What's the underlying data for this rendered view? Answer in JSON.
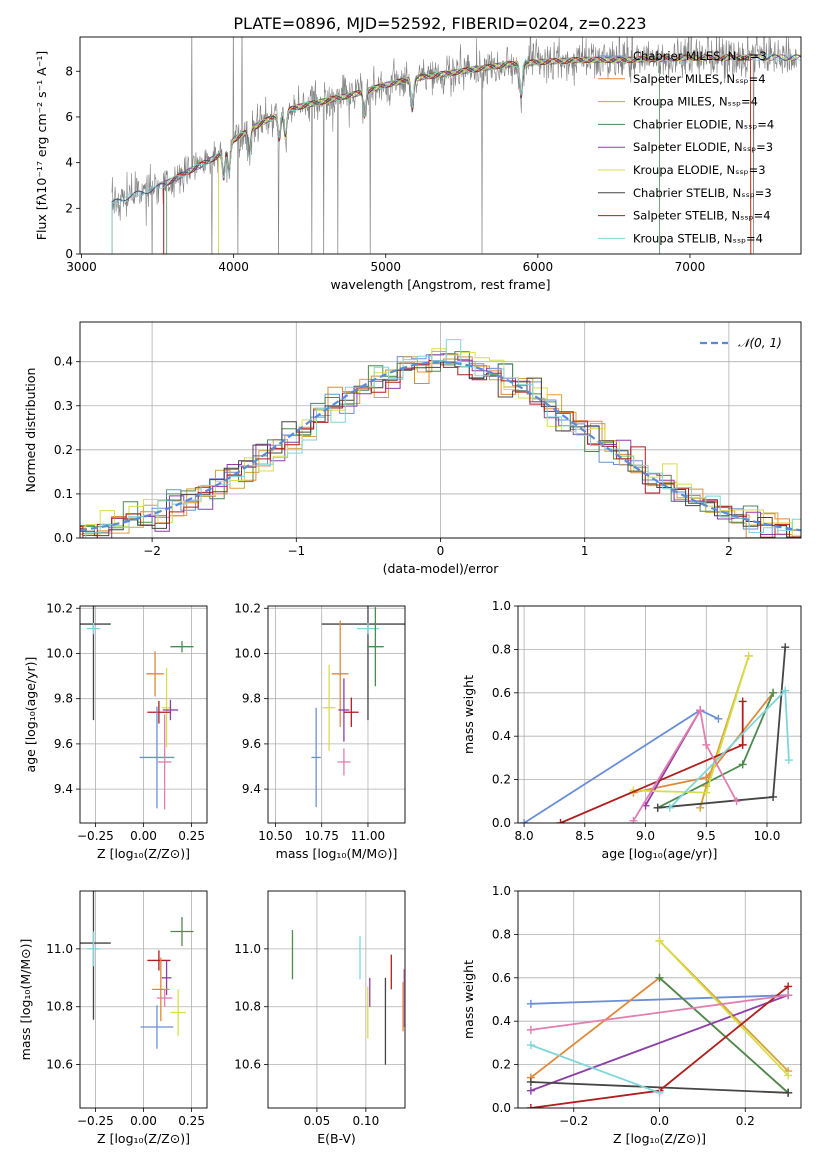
{
  "figure_title": "PLATE=0896, MJD=52592, FIBERID=0204, z=0.223",
  "colors": {
    "chabrier_miles": "#6a8fd6",
    "salpeter_miles": "#e0893a",
    "kroupa_miles": "#d6a23a",
    "chabrier_elodie": "#4c8a4f",
    "salpeter_elodie": "#8e3fa6",
    "kroupa_elodie": "#d8de4a",
    "chabrier_stelib": "#454545",
    "salpeter_stelib": "#b01e1e",
    "kroupa_stelib": "#7fd6d8",
    "pink": "#e07fb0",
    "gauss": "#5b8bd6",
    "data": "#808080"
  },
  "chart_data": [
    {
      "id": "spectrum",
      "type": "line",
      "xlabel": "wavelength [Angstrom, rest frame]",
      "ylabel": "Flux [fλ10⁻¹⁷ erg cm⁻² s⁻¹ A⁻¹]",
      "xlim": [
        2990,
        7730
      ],
      "ylim": [
        0,
        9.5
      ],
      "xticks": [
        3000,
        4000,
        5000,
        6000,
        7000
      ],
      "yticks": [
        0,
        2,
        4,
        6,
        8
      ],
      "continuum": {
        "x": [
          3200,
          3300,
          3500,
          3700,
          3900,
          4000,
          4200,
          4400,
          4600,
          4800,
          5000,
          5200,
          5500,
          5800,
          6000,
          6300,
          6600,
          7000,
          7400,
          7700
        ],
        "y": [
          2.2,
          2.5,
          2.9,
          3.6,
          4.3,
          5.0,
          5.8,
          6.4,
          6.7,
          7.0,
          7.4,
          7.7,
          8.0,
          8.3,
          8.4,
          8.5,
          8.5,
          8.6,
          8.6,
          8.6
        ]
      },
      "legend": [
        {
          "label": "Chabrier MILES, Nₛₛₚ=3",
          "color": "#6a8fd6"
        },
        {
          "label": "Salpeter MILES, Nₛₛₚ=4",
          "color": "#e0893a"
        },
        {
          "label": "Kroupa MILES, Nₛₛₚ=4",
          "color": "#d6a23a"
        },
        {
          "label": "Chabrier ELODIE, Nₛₛₚ=4",
          "color": "#4c8a4f"
        },
        {
          "label": "Salpeter ELODIE, Nₛₛₚ=3",
          "color": "#8e3fa6"
        },
        {
          "label": "Kroupa ELODIE, Nₛₛₚ=3",
          "color": "#d8de4a"
        },
        {
          "label": "Chabrier STELIB, Nₛₛₚ=3",
          "color": "#454545"
        },
        {
          "label": "Salpeter STELIB, Nₛₛₚ=4",
          "color": "#b01e1e"
        },
        {
          "label": "Kroupa STELIB, Nₛₛₚ=4",
          "color": "#7fd6d8"
        }
      ]
    },
    {
      "id": "residuals",
      "type": "bar",
      "xlabel": "(data-model)/error",
      "ylabel": "Normed distribution",
      "xlim": [
        -2.5,
        2.5
      ],
      "ylim": [
        0,
        0.49
      ],
      "xticks": [
        -2,
        -1,
        0,
        1,
        2
      ],
      "yticks": [
        0.0,
        0.1,
        0.2,
        0.3,
        0.4
      ],
      "legend": "𝒩(0, 1)",
      "grid": true
    },
    {
      "id": "age_vs_Z",
      "type": "scatter",
      "xlabel": "Z [log₁₀(Z/Z⊙)]",
      "ylabel": "age  [log₁₀(age/yr)]",
      "xlim": [
        -0.33,
        0.33
      ],
      "ylim": [
        9.25,
        10.21
      ],
      "xticks": [
        -0.25,
        0.0,
        0.25
      ],
      "yticks": [
        9.4,
        9.6,
        9.8,
        10.0,
        10.2
      ],
      "points": [
        {
          "x": -0.26,
          "y": 10.13,
          "dx": 0.18,
          "dy": 0.85,
          "color": "#454545"
        },
        {
          "x": -0.26,
          "y": 10.11,
          "dx": 0.07,
          "dy": 0.05,
          "color": "#7fd6d8"
        },
        {
          "x": 0.2,
          "y": 10.03,
          "dx": 0.12,
          "dy": 0.05,
          "color": "#4c8a4f"
        },
        {
          "x": 0.06,
          "y": 9.91,
          "dx": 0.09,
          "dy": 0.2,
          "color": "#e0893a"
        },
        {
          "x": 0.12,
          "y": 9.76,
          "dx": 0.05,
          "dy": 0.35,
          "color": "#d8de4a"
        },
        {
          "x": 0.14,
          "y": 9.75,
          "dx": 0.08,
          "dy": 0.09,
          "color": "#8e3fa6"
        },
        {
          "x": 0.08,
          "y": 9.74,
          "dx": 0.12,
          "dy": 0.1,
          "color": "#b01e1e"
        },
        {
          "x": 0.07,
          "y": 9.54,
          "dx": 0.18,
          "dy": 0.45,
          "color": "#6a8fd6"
        },
        {
          "x": 0.11,
          "y": 9.52,
          "dx": 0.07,
          "dy": 0.42,
          "color": "#e07fb0"
        }
      ]
    },
    {
      "id": "age_vs_mass",
      "type": "scatter",
      "xlabel": "mass [log₁₀(M/M⊙)]",
      "xlim": [
        10.46,
        11.2
      ],
      "ylim": [
        9.25,
        10.21
      ],
      "xticks": [
        10.5,
        10.75,
        11.0
      ],
      "yticks": [
        9.4,
        9.6,
        9.8,
        10.0,
        10.2
      ],
      "points": [
        {
          "x": 11.0,
          "y": 10.13,
          "dx": 0.5,
          "dy": 0.85,
          "color": "#454545"
        },
        {
          "x": 11.0,
          "y": 10.11,
          "dx": 0.12,
          "dy": 0.05,
          "color": "#7fd6d8"
        },
        {
          "x": 11.04,
          "y": 10.03,
          "dx": 0.09,
          "dy": 0.35,
          "color": "#4c8a4f"
        },
        {
          "x": 10.85,
          "y": 9.91,
          "dx": 0.09,
          "dy": 0.47,
          "color": "#e0893a"
        },
        {
          "x": 10.79,
          "y": 9.76,
          "dx": 0.07,
          "dy": 0.38,
          "color": "#d8de4a"
        },
        {
          "x": 10.87,
          "y": 9.75,
          "dx": 0.06,
          "dy": 0.28,
          "color": "#8e3fa6"
        },
        {
          "x": 10.91,
          "y": 9.74,
          "dx": 0.08,
          "dy": 0.13,
          "color": "#b01e1e"
        },
        {
          "x": 10.72,
          "y": 9.54,
          "dx": 0.05,
          "dy": 0.44,
          "color": "#6a8fd6"
        },
        {
          "x": 10.87,
          "y": 9.52,
          "dx": 0.07,
          "dy": 0.12,
          "color": "#e07fb0"
        }
      ]
    },
    {
      "id": "mass_weight_vs_age",
      "type": "line",
      "xlabel": "age  [log₁₀(age/yr)]",
      "ylabel": "mass weight",
      "xlim": [
        7.95,
        10.28
      ],
      "ylim": [
        0,
        1
      ],
      "xticks": [
        8.0,
        8.5,
        9.0,
        9.5,
        10.0
      ],
      "yticks": [
        0.0,
        0.2,
        0.4,
        0.6,
        0.8,
        1.0
      ],
      "series": [
        {
          "color": "#6a8fd6",
          "x": [
            8.0,
            9.45,
            9.6
          ],
          "y": [
            0.0,
            0.52,
            0.48
          ]
        },
        {
          "color": "#e0893a",
          "x": [
            8.9,
            9.5,
            10.05
          ],
          "y": [
            0.14,
            0.21,
            0.6
          ]
        },
        {
          "color": "#d6a23a",
          "x": [
            9.45,
            9.5,
            9.85
          ],
          "y": [
            0.07,
            0.17,
            0.77
          ]
        },
        {
          "color": "#4c8a4f",
          "x": [
            9.1,
            9.8,
            10.05
          ],
          "y": [
            0.07,
            0.27,
            0.6
          ]
        },
        {
          "color": "#8e3fa6",
          "x": [
            9.0,
            9.45
          ],
          "y": [
            0.08,
            0.52
          ]
        },
        {
          "color": "#d8de4a",
          "x": [
            8.9,
            9.5,
            9.85
          ],
          "y": [
            0.15,
            0.14,
            0.77
          ]
        },
        {
          "color": "#454545",
          "x": [
            9.1,
            10.05,
            10.15
          ],
          "y": [
            0.07,
            0.12,
            0.81
          ]
        },
        {
          "color": "#b01e1e",
          "x": [
            8.3,
            9.8,
            9.8
          ],
          "y": [
            0.0,
            0.36,
            0.56
          ]
        },
        {
          "color": "#7fd6d8",
          "x": [
            9.2,
            10.15,
            10.18
          ],
          "y": [
            0.07,
            0.61,
            0.29
          ]
        },
        {
          "color": "#e07fb0",
          "x": [
            8.9,
            9.45,
            9.5,
            9.75
          ],
          "y": [
            0.01,
            0.52,
            0.36,
            0.1
          ]
        }
      ]
    },
    {
      "id": "mass_vs_Z",
      "type": "scatter",
      "xlabel": "Z [log₁₀(Z/Z⊙)]",
      "ylabel": "mass [log₁₀(M/M⊙)]",
      "xlim": [
        -0.33,
        0.33
      ],
      "ylim": [
        10.45,
        11.2
      ],
      "xticks": [
        -0.25,
        0.0,
        0.25
      ],
      "yticks": [
        10.6,
        10.8,
        11.0
      ],
      "points": [
        {
          "x": -0.26,
          "y": 11.02,
          "dx": 0.18,
          "dy": 0.53,
          "color": "#454545"
        },
        {
          "x": -0.26,
          "y": 11.0,
          "dx": 0.07,
          "dy": 0.12,
          "color": "#7fd6d8"
        },
        {
          "x": 0.2,
          "y": 11.06,
          "dx": 0.12,
          "dy": 0.1,
          "color": "#4c8a4f"
        },
        {
          "x": 0.08,
          "y": 10.96,
          "dx": 0.12,
          "dy": 0.07,
          "color": "#b01e1e"
        },
        {
          "x": 0.12,
          "y": 10.9,
          "dx": 0.05,
          "dy": 0.12,
          "color": "#8e3fa6"
        },
        {
          "x": 0.09,
          "y": 10.86,
          "dx": 0.09,
          "dy": 0.22,
          "color": "#e0893a"
        },
        {
          "x": 0.11,
          "y": 10.83,
          "dx": 0.08,
          "dy": 0.06,
          "color": "#e07fb0"
        },
        {
          "x": 0.18,
          "y": 10.78,
          "dx": 0.08,
          "dy": 0.16,
          "color": "#d8de4a"
        },
        {
          "x": 0.07,
          "y": 10.73,
          "dx": 0.17,
          "dy": 0.15,
          "color": "#6a8fd6"
        }
      ]
    },
    {
      "id": "mass_vs_ebv",
      "type": "scatter",
      "xlabel": "E(B-V)",
      "xlim": [
        0.0,
        0.14
      ],
      "ylim": [
        10.45,
        11.2
      ],
      "xticks": [
        0.05,
        0.1
      ],
      "yticks": [
        10.6,
        10.8,
        11.0
      ],
      "points": [
        {
          "x": 0.025,
          "y": 10.98,
          "dy": 0.17,
          "color": "#4c8a4f"
        },
        {
          "x": 0.094,
          "y": 10.97,
          "dy": 0.15,
          "color": "#7fd6d8"
        },
        {
          "x": 0.102,
          "y": 10.78,
          "dy": 0.18,
          "color": "#d8de4a"
        },
        {
          "x": 0.104,
          "y": 10.85,
          "dy": 0.1,
          "color": "#8e3fa6"
        },
        {
          "x": 0.12,
          "y": 10.75,
          "dy": 0.3,
          "color": "#454545"
        },
        {
          "x": 0.126,
          "y": 10.92,
          "dy": 0.12,
          "color": "#b01e1e"
        },
        {
          "x": 0.138,
          "y": 10.8,
          "dy": 0.17,
          "color": "#e0893a"
        },
        {
          "x": 0.139,
          "y": 10.83,
          "dy": 0.2,
          "color": "#e07fb0"
        }
      ]
    },
    {
      "id": "mass_weight_vs_Z",
      "type": "line",
      "xlabel": "Z [log₁₀(Z/Z⊙)]",
      "ylabel": "mass weight",
      "xlim": [
        -0.33,
        0.33
      ],
      "ylim": [
        0,
        1
      ],
      "xticks": [
        -0.2,
        0.0,
        0.2
      ],
      "yticks": [
        0.0,
        0.2,
        0.4,
        0.6,
        0.8,
        1.0
      ],
      "series": [
        {
          "color": "#6a8fd6",
          "x": [
            -0.3,
            0.3
          ],
          "y": [
            0.48,
            0.52
          ]
        },
        {
          "color": "#e0893a",
          "x": [
            -0.3,
            0.0,
            0.3
          ],
          "y": [
            0.14,
            0.6,
            0.07
          ]
        },
        {
          "color": "#d6a23a",
          "x": [
            0.0,
            0.3
          ],
          "y": [
            0.77,
            0.17
          ]
        },
        {
          "color": "#4c8a4f",
          "x": [
            0.0,
            0.3
          ],
          "y": [
            0.6,
            0.07
          ]
        },
        {
          "color": "#8e3fa6",
          "x": [
            -0.3,
            0.3
          ],
          "y": [
            0.08,
            0.52
          ]
        },
        {
          "color": "#d8de4a",
          "x": [
            0.0,
            0.3
          ],
          "y": [
            0.77,
            0.15
          ]
        },
        {
          "color": "#454545",
          "x": [
            -0.3,
            0.3
          ],
          "y": [
            0.12,
            0.07
          ]
        },
        {
          "color": "#b01e1e",
          "x": [
            -0.3,
            0.0,
            0.3
          ],
          "y": [
            0.0,
            0.08,
            0.56
          ]
        },
        {
          "color": "#7fd6d8",
          "x": [
            -0.3,
            0.0
          ],
          "y": [
            0.29,
            0.07
          ]
        },
        {
          "color": "#e07fb0",
          "x": [
            -0.3,
            0.3
          ],
          "y": [
            0.36,
            0.52
          ]
        }
      ]
    }
  ]
}
